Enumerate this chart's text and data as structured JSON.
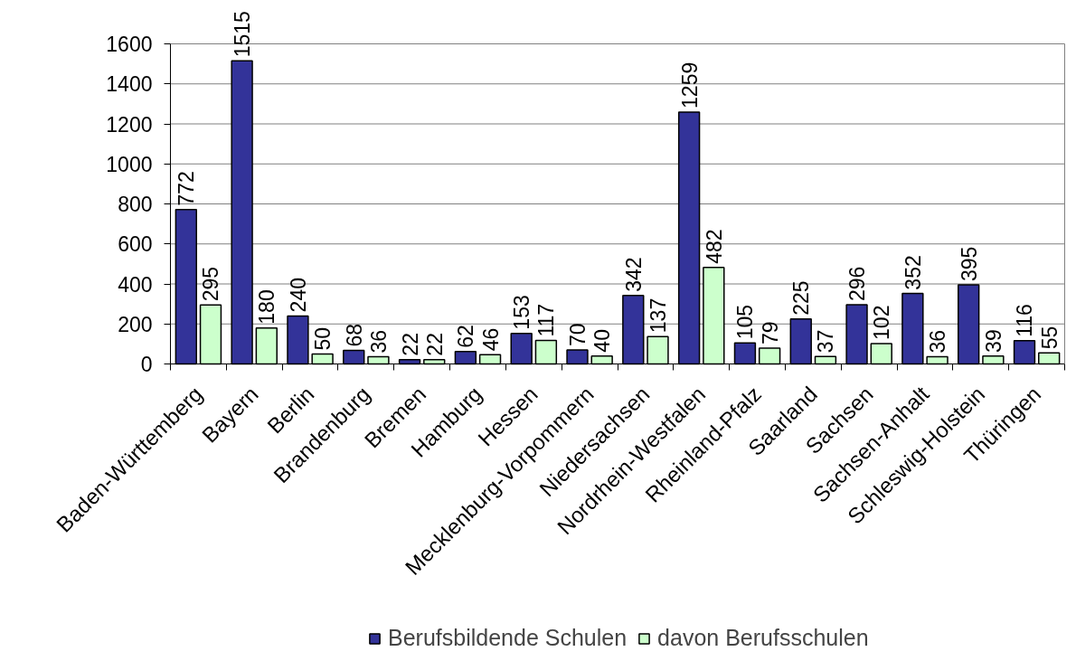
{
  "chart_data": {
    "type": "bar",
    "categories": [
      "Baden-Württemberg",
      "Bayern",
      "Berlin",
      "Brandenburg",
      "Bremen",
      "Hamburg",
      "Hessen",
      "Mecklenburg-Vorpommern",
      "Niedersachsen",
      "Nordrhein-Westfalen",
      "Rheinland-Pfalz",
      "Saarland",
      "Sachsen",
      "Sachsen-Anhalt",
      "Schleswig-Holstein",
      "Thüringen"
    ],
    "series": [
      {
        "name": "Berufsbildende Schulen",
        "color": "#333399",
        "values": [
          772,
          1515,
          240,
          68,
          22,
          62,
          153,
          70,
          342,
          1259,
          105,
          225,
          296,
          352,
          395,
          116
        ]
      },
      {
        "name": "davon Berufsschulen",
        "color": "#ccffcc",
        "values": [
          295,
          180,
          50,
          36,
          22,
          46,
          117,
          40,
          137,
          482,
          79,
          37,
          102,
          36,
          39,
          55
        ]
      }
    ],
    "ylim": [
      0,
      1600
    ],
    "yticks": [
      0,
      200,
      400,
      600,
      800,
      1000,
      1200,
      1400,
      1600
    ],
    "grid": "y",
    "legend": "bottom",
    "data_labels": true
  }
}
